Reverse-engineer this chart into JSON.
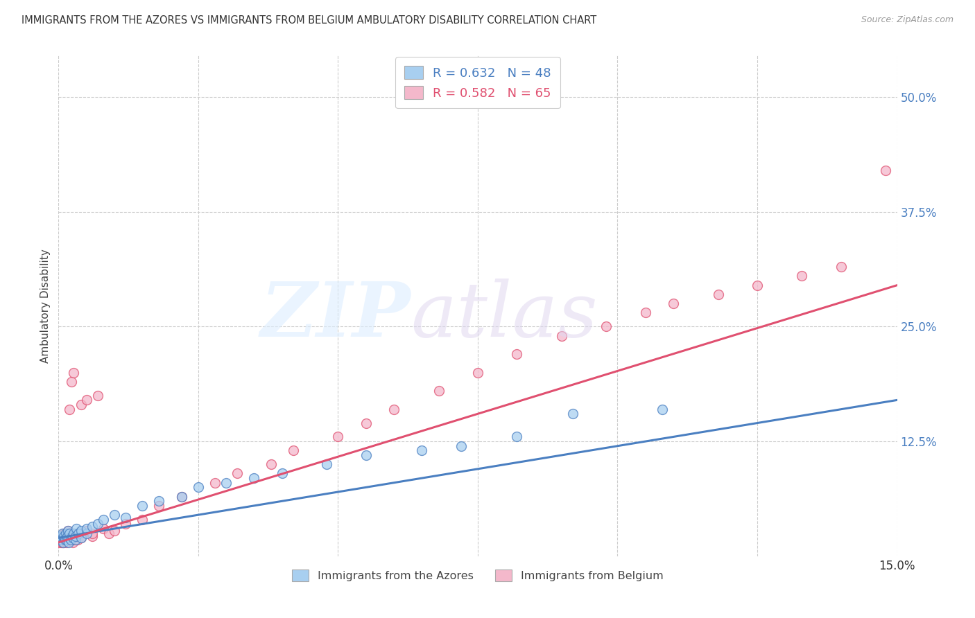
{
  "title": "IMMIGRANTS FROM THE AZORES VS IMMIGRANTS FROM BELGIUM AMBULATORY DISABILITY CORRELATION CHART",
  "source": "Source: ZipAtlas.com",
  "ylabel": "Ambulatory Disability",
  "ytick_labels": [
    "50.0%",
    "37.5%",
    "25.0%",
    "12.5%"
  ],
  "ytick_values": [
    0.5,
    0.375,
    0.25,
    0.125
  ],
  "xlim": [
    0.0,
    0.15
  ],
  "ylim": [
    0.0,
    0.545
  ],
  "legend_labels": [
    "Immigrants from the Azores",
    "Immigrants from Belgium"
  ],
  "color_azores": "#a8cff0",
  "color_belgium": "#f4b8cb",
  "line_color_azores": "#4a7fc1",
  "line_color_belgium": "#e05070",
  "background_color": "#ffffff",
  "azores_x": [
    0.0002,
    0.0003,
    0.0005,
    0.0006,
    0.0007,
    0.0008,
    0.0009,
    0.001,
    0.0012,
    0.0013,
    0.0014,
    0.0015,
    0.0016,
    0.0017,
    0.0018,
    0.002,
    0.002,
    0.0022,
    0.0024,
    0.0025,
    0.0027,
    0.003,
    0.003,
    0.0032,
    0.0035,
    0.004,
    0.004,
    0.005,
    0.005,
    0.006,
    0.007,
    0.008,
    0.01,
    0.012,
    0.015,
    0.018,
    0.022,
    0.025,
    0.03,
    0.035,
    0.04,
    0.048,
    0.055,
    0.065,
    0.072,
    0.082,
    0.092,
    0.108
  ],
  "azores_y": [
    0.018,
    0.02,
    0.022,
    0.018,
    0.025,
    0.015,
    0.02,
    0.022,
    0.018,
    0.025,
    0.02,
    0.018,
    0.022,
    0.028,
    0.015,
    0.02,
    0.025,
    0.018,
    0.022,
    0.02,
    0.025,
    0.018,
    0.022,
    0.03,
    0.025,
    0.02,
    0.028,
    0.025,
    0.03,
    0.032,
    0.035,
    0.04,
    0.045,
    0.042,
    0.055,
    0.06,
    0.065,
    0.075,
    0.08,
    0.085,
    0.09,
    0.1,
    0.11,
    0.115,
    0.12,
    0.13,
    0.155,
    0.16
  ],
  "belgium_x": [
    0.0001,
    0.0002,
    0.0003,
    0.0004,
    0.0005,
    0.0006,
    0.0007,
    0.0008,
    0.0009,
    0.001,
    0.0011,
    0.0012,
    0.0013,
    0.0014,
    0.0015,
    0.0016,
    0.0017,
    0.0018,
    0.0019,
    0.002,
    0.002,
    0.0022,
    0.0023,
    0.0024,
    0.0025,
    0.0026,
    0.0027,
    0.0028,
    0.003,
    0.0032,
    0.0034,
    0.0036,
    0.004,
    0.004,
    0.005,
    0.005,
    0.006,
    0.006,
    0.007,
    0.008,
    0.009,
    0.01,
    0.012,
    0.015,
    0.018,
    0.022,
    0.028,
    0.032,
    0.038,
    0.042,
    0.05,
    0.055,
    0.06,
    0.068,
    0.075,
    0.082,
    0.09,
    0.098,
    0.105,
    0.11,
    0.118,
    0.125,
    0.133,
    0.14,
    0.148
  ],
  "belgium_y": [
    0.015,
    0.018,
    0.02,
    0.015,
    0.022,
    0.018,
    0.015,
    0.02,
    0.025,
    0.015,
    0.02,
    0.025,
    0.018,
    0.022,
    0.015,
    0.02,
    0.028,
    0.018,
    0.16,
    0.02,
    0.025,
    0.018,
    0.19,
    0.02,
    0.022,
    0.015,
    0.2,
    0.018,
    0.02,
    0.022,
    0.018,
    0.025,
    0.165,
    0.02,
    0.028,
    0.17,
    0.022,
    0.025,
    0.175,
    0.03,
    0.025,
    0.028,
    0.035,
    0.04,
    0.055,
    0.065,
    0.08,
    0.09,
    0.1,
    0.115,
    0.13,
    0.145,
    0.16,
    0.18,
    0.2,
    0.22,
    0.24,
    0.25,
    0.265,
    0.275,
    0.285,
    0.295,
    0.305,
    0.315,
    0.42
  ]
}
